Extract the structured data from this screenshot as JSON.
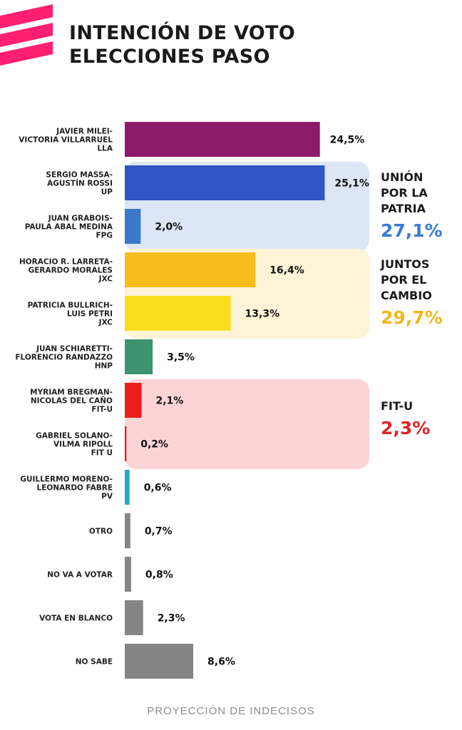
{
  "title_lines": [
    "INTENCIÓN DE VOTO",
    "ELECCIONES PASO"
  ],
  "footnote": "PROYECCIÓN DE INDECISOS",
  "logo": {
    "icon": "stripes-logo",
    "color": "#ff1f72"
  },
  "chart_data": {
    "type": "bar",
    "orientation": "horizontal",
    "title": "INTENCIÓN DE VOTO ELECCIONES PASO",
    "xlim": [
      0,
      27
    ],
    "grid": false,
    "value_suffix": "%",
    "categories": [
      {
        "lines": [
          "JAVIER MILEI-",
          "VICTORIA VILLARRUEL",
          "LLA"
        ],
        "value": 24.5,
        "label": "24,5%",
        "color": "#8b1a6b"
      },
      {
        "lines": [
          "SERGIO MASSA-",
          "AGUSTÍN ROSSI",
          "UP"
        ],
        "value": 25.1,
        "label": "25,1%",
        "color": "#2f56c4"
      },
      {
        "lines": [
          "JUAN GRABOIS-",
          "PAULA ABAL MEDINA",
          "FPG"
        ],
        "value": 2.0,
        "label": "2,0%",
        "color": "#3a78c9"
      },
      {
        "lines": [
          "HORACIO R. LARRETA-",
          "GERARDO MORALES",
          "JXC"
        ],
        "value": 16.4,
        "label": "16,4%",
        "color": "#f7bc1e"
      },
      {
        "lines": [
          "PATRICIA BULLRICH-",
          "LUIS PETRI",
          "JXC"
        ],
        "value": 13.3,
        "label": "13,3%",
        "color": "#fadd1f"
      },
      {
        "lines": [
          "JUAN SCHIARETTI-",
          "FLORENCIO RANDAZZO",
          "HNP"
        ],
        "value": 3.5,
        "label": "3,5%",
        "color": "#3c9470"
      },
      {
        "lines": [
          "MYRIAM BREGMAN-",
          "NICOLAS DEL CAÑO",
          "FIT-U"
        ],
        "value": 2.1,
        "label": "2,1%",
        "color": "#ee1b1b"
      },
      {
        "lines": [
          "GABRIEL SOLANO-",
          "VILMA RIPOLL",
          "FIT U"
        ],
        "value": 0.2,
        "label": "0,2%",
        "color": "#cc2222"
      },
      {
        "lines": [
          "GUILLERMO MORENO-",
          "LEONARDO FABRE",
          "PV"
        ],
        "value": 0.6,
        "label": "0,6%",
        "color": "#2aa6c4"
      },
      {
        "lines": [
          "OTRO"
        ],
        "value": 0.7,
        "label": "0,7%",
        "color": "#858585"
      },
      {
        "lines": [
          "NO VA A VOTAR"
        ],
        "value": 0.8,
        "label": "0,8%",
        "color": "#858585"
      },
      {
        "lines": [
          "VOTA EN BLANCO"
        ],
        "value": 2.3,
        "label": "2,3%",
        "color": "#858585"
      },
      {
        "lines": [
          "NO SABE"
        ],
        "value": 8.6,
        "label": "8,6%",
        "color": "#858585"
      }
    ],
    "groups": [
      {
        "name_lines": [
          "UNIÓN",
          "POR LA",
          "PATRIA"
        ],
        "total": 27.1,
        "total_label": "27,1%",
        "rows": [
          1,
          2
        ],
        "color": "#3a7bd5",
        "bg": "#dce6f4"
      },
      {
        "name_lines": [
          "JUNTOS",
          "POR EL",
          "CAMBIO"
        ],
        "total": 29.7,
        "total_label": "29,7%",
        "rows": [
          3,
          4
        ],
        "color": "#f2b81c",
        "bg": "#fdf3d6"
      },
      {
        "name_lines": [
          "FIT-U"
        ],
        "total": 2.3,
        "total_label": "2,3%",
        "rows": [
          6,
          7
        ],
        "color": "#e02424",
        "bg": "#fdd4d6"
      }
    ]
  }
}
